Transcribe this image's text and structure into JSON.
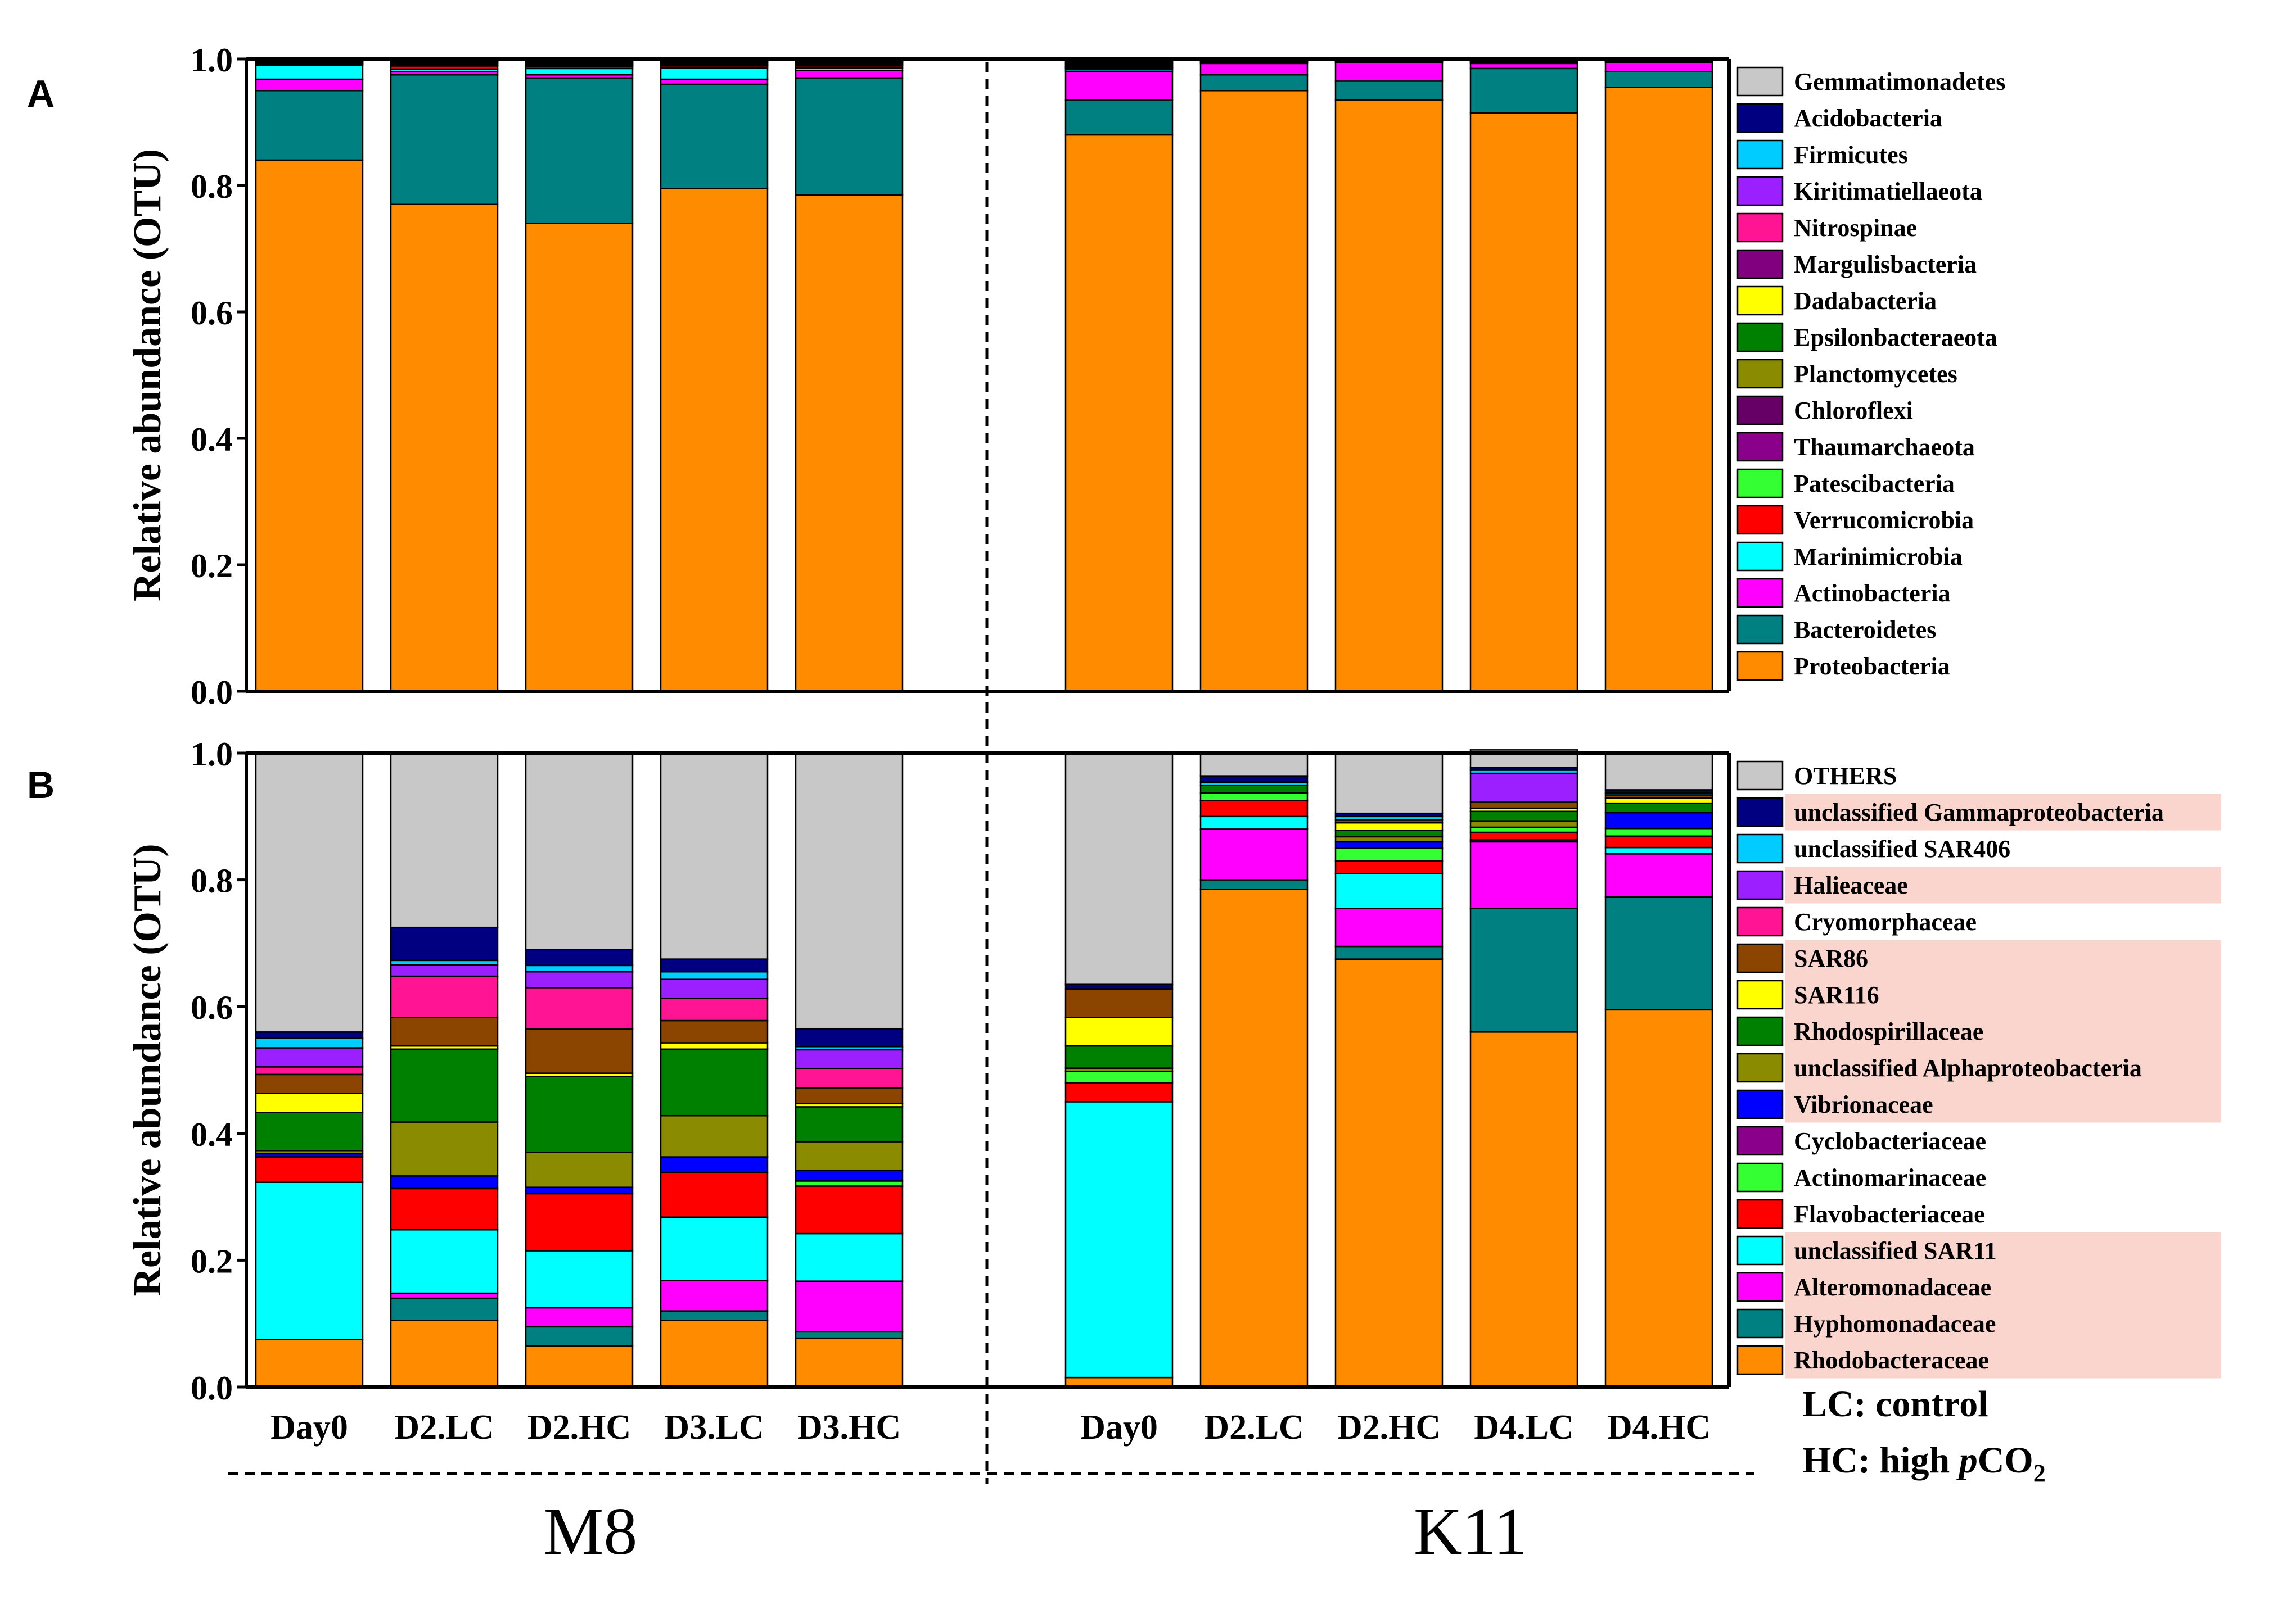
{
  "panel_labels": [
    "A",
    "B"
  ],
  "group_labels": [
    "M8",
    "K11"
  ],
  "note_lc": "LC: control",
  "note_hc_prefix": "HC: high ",
  "note_hc_p": "p",
  "note_hc_co": "CO",
  "note_hc_sub": "2",
  "chart_data": [
    {
      "type": "bar",
      "stacked": true,
      "panel": "A",
      "title": "",
      "ylabel": "Relative abundance (OTU)",
      "ylim": [
        0,
        1
      ],
      "yticks": [
        "0.0",
        "0.2",
        "0.4",
        "0.6",
        "0.8",
        "1.0"
      ],
      "categories": [
        "Day0",
        "D2.LC",
        "D2.HC",
        "D3.LC",
        "D3.HC",
        "Day0",
        "D2.LC",
        "D2.HC",
        "D4.LC",
        "D4.HC"
      ],
      "groups": [
        {
          "name": "M8",
          "categories": [
            "Day0",
            "D2.LC",
            "D2.HC",
            "D3.LC",
            "D3.HC"
          ]
        },
        {
          "name": "K11",
          "categories": [
            "Day0",
            "D2.LC",
            "D2.HC",
            "D4.LC",
            "D4.HC"
          ]
        }
      ],
      "series": [
        {
          "name": "Proteobacteria",
          "color": "#FF8C00",
          "values": [
            0.84,
            0.77,
            0.74,
            0.795,
            0.785,
            0.88,
            0.95,
            0.935,
            0.915,
            0.955
          ]
        },
        {
          "name": "Bacteroidetes",
          "color": "#008080",
          "values": [
            0.11,
            0.205,
            0.23,
            0.165,
            0.185,
            0.055,
            0.025,
            0.03,
            0.07,
            0.025
          ]
        },
        {
          "name": "Actinobacteria",
          "color": "#FF00FF",
          "values": [
            0.018,
            0.005,
            0.005,
            0.008,
            0.012,
            0.045,
            0.018,
            0.03,
            0.008,
            0.015
          ]
        },
        {
          "name": "Marinimicrobia",
          "color": "#00FFFF",
          "values": [
            0.022,
            0.004,
            0.01,
            0.018,
            0.004,
            0.003,
            0.002,
            0.001,
            0.002,
            0.001
          ]
        },
        {
          "name": "Verrucomicrobia",
          "color": "#FF0000",
          "values": [
            0.002,
            0.005,
            0.003,
            0.003,
            0.003,
            0.002,
            0.001,
            0.001,
            0.001,
            0.001
          ]
        },
        {
          "name": "Patescibacteria",
          "color": "#33FF33",
          "values": [
            0.001,
            0.001,
            0.001,
            0.001,
            0.001,
            0.001,
            0.001,
            0.0,
            0.001,
            0.0
          ]
        },
        {
          "name": "Thaumarchaeota",
          "color": "#8B008B",
          "values": [
            0.001,
            0.001,
            0.001,
            0.001,
            0.001,
            0.001,
            0.0,
            0.0,
            0.0,
            0.0
          ]
        },
        {
          "name": "Chloroflexi",
          "color": "#660066",
          "values": [
            0.001,
            0.0,
            0.001,
            0.001,
            0.001,
            0.001,
            0.0,
            0.0,
            0.0,
            0.0
          ]
        },
        {
          "name": "Planctomycetes",
          "color": "#8B8B00",
          "values": [
            0.001,
            0.002,
            0.001,
            0.002,
            0.001,
            0.001,
            0.001,
            0.001,
            0.001,
            0.001
          ]
        },
        {
          "name": "Epsilonbacteraeota",
          "color": "#008000",
          "values": [
            0.001,
            0.001,
            0.001,
            0.001,
            0.001,
            0.002,
            0.0,
            0.0,
            0.0,
            0.0
          ]
        },
        {
          "name": "Dadabacteria",
          "color": "#FFFF00",
          "values": [
            0.0,
            0.0,
            0.001,
            0.001,
            0.001,
            0.0,
            0.0,
            0.0,
            0.0,
            0.0
          ]
        },
        {
          "name": "Margulisbacteria",
          "color": "#800080",
          "values": [
            0.0,
            0.001,
            0.0,
            0.0,
            0.0,
            0.0,
            0.0,
            0.0,
            0.0,
            0.0
          ]
        },
        {
          "name": "Nitrospinae",
          "color": "#FF1493",
          "values": [
            0.0,
            0.001,
            0.001,
            0.001,
            0.001,
            0.002,
            0.001,
            0.001,
            0.001,
            0.001
          ]
        },
        {
          "name": "Kiritimatiellaeota",
          "color": "#9B1FFF",
          "values": [
            0.0,
            0.0,
            0.0,
            0.0,
            0.0,
            0.0,
            0.0,
            0.0,
            0.0,
            0.0
          ]
        },
        {
          "name": "Firmicutes",
          "color": "#00CCFF",
          "values": [
            0.001,
            0.001,
            0.0,
            0.001,
            0.001,
            0.001,
            0.0,
            0.0,
            0.0,
            0.0
          ]
        },
        {
          "name": "Acidobacteria",
          "color": "#000080",
          "values": [
            0.001,
            0.001,
            0.001,
            0.001,
            0.001,
            0.002,
            0.0,
            0.0,
            0.0,
            0.0
          ]
        },
        {
          "name": "Gemmatimonadetes",
          "color": "#C8C8C8",
          "values": [
            0.0,
            0.002,
            0.003,
            0.001,
            0.002,
            0.004,
            0.001,
            0.001,
            0.001,
            0.001
          ]
        }
      ],
      "legend": [
        "Gemmatimonadetes",
        "Acidobacteria",
        "Firmicutes",
        "Kiritimatiellaeota",
        "Nitrospinae",
        "Margulisbacteria",
        "Dadabacteria",
        "Epsilonbacteraeota",
        "Planctomycetes",
        "Chloroflexi",
        "Thaumarchaeota",
        "Patescibacteria",
        "Verrucomicrobia",
        "Marinimicrobia",
        "Actinobacteria",
        "Bacteroidetes",
        "Proteobacteria"
      ],
      "legend_position": "right"
    },
    {
      "type": "bar",
      "stacked": true,
      "panel": "B",
      "title": "",
      "ylabel": "Relative abundance (OTU)",
      "ylim": [
        0,
        1
      ],
      "yticks": [
        "0.0",
        "0.2",
        "0.4",
        "0.6",
        "0.8",
        "1.0"
      ],
      "categories": [
        "Day0",
        "D2.LC",
        "D2.HC",
        "D3.LC",
        "D3.HC",
        "Day0",
        "D2.LC",
        "D2.HC",
        "D4.LC",
        "D4.HC"
      ],
      "groups": [
        {
          "name": "M8",
          "categories": [
            "Day0",
            "D2.LC",
            "D2.HC",
            "D3.LC",
            "D3.HC"
          ]
        },
        {
          "name": "K11",
          "categories": [
            "Day0",
            "D2.LC",
            "D2.HC",
            "D4.LC",
            "D4.HC"
          ]
        }
      ],
      "series": [
        {
          "name": "Rhodobacteraceae",
          "color": "#FF8C00",
          "values": [
            0.075,
            0.105,
            0.065,
            0.105,
            0.077,
            0.015,
            0.785,
            0.675,
            0.56,
            0.595
          ]
        },
        {
          "name": "Hyphomonadaceae",
          "color": "#008080",
          "values": [
            0.0,
            0.035,
            0.03,
            0.015,
            0.01,
            0.0,
            0.015,
            0.02,
            0.195,
            0.178
          ]
        },
        {
          "name": "Alteromonadaceae",
          "color": "#FF00FF",
          "values": [
            0.0,
            0.008,
            0.03,
            0.048,
            0.08,
            0.0,
            0.08,
            0.06,
            0.105,
            0.068
          ]
        },
        {
          "name": "unclassified SAR11",
          "color": "#00FFFF",
          "values": [
            0.248,
            0.1,
            0.09,
            0.1,
            0.075,
            0.435,
            0.02,
            0.055,
            0.003,
            0.01
          ]
        },
        {
          "name": "Flavobacteriaceae",
          "color": "#FF0000",
          "values": [
            0.04,
            0.065,
            0.09,
            0.07,
            0.075,
            0.03,
            0.025,
            0.02,
            0.012,
            0.018
          ]
        },
        {
          "name": "Actinomarinaceae",
          "color": "#33FF33",
          "values": [
            0.0,
            0.0,
            0.0,
            0.0,
            0.008,
            0.018,
            0.012,
            0.02,
            0.008,
            0.012
          ]
        },
        {
          "name": "Cyclobacteriaceae",
          "color": "#8B008B",
          "values": [
            0.0,
            0.0,
            0.0,
            0.0,
            0.0,
            0.0,
            0.0,
            0.0,
            0.0,
            0.0
          ]
        },
        {
          "name": "Vibrionaceae",
          "color": "#0000FF",
          "values": [
            0.005,
            0.02,
            0.01,
            0.025,
            0.017,
            0.0,
            0.0,
            0.01,
            0.0,
            0.025
          ]
        },
        {
          "name": "unclassified Alphaproteobacteria",
          "color": "#8B8B00",
          "values": [
            0.005,
            0.085,
            0.055,
            0.065,
            0.045,
            0.005,
            0.0,
            0.008,
            0.01,
            0.0
          ]
        },
        {
          "name": "Rhodospirillaceae",
          "color": "#008000",
          "values": [
            0.06,
            0.115,
            0.12,
            0.105,
            0.055,
            0.035,
            0.012,
            0.01,
            0.015,
            0.015
          ]
        },
        {
          "name": "SAR116",
          "color": "#FFFF00",
          "values": [
            0.03,
            0.005,
            0.005,
            0.01,
            0.005,
            0.045,
            0.0,
            0.012,
            0.005,
            0.008
          ]
        },
        {
          "name": "SAR86",
          "color": "#8B4500",
          "values": [
            0.03,
            0.045,
            0.07,
            0.035,
            0.025,
            0.045,
            0.0,
            0.005,
            0.01,
            0.005
          ]
        },
        {
          "name": "Cryomorphaceae",
          "color": "#FF1493",
          "values": [
            0.012,
            0.065,
            0.065,
            0.035,
            0.03,
            0.0,
            0.0,
            0.0,
            0.0,
            0.0
          ]
        },
        {
          "name": "Halieaceae",
          "color": "#9B1FFF",
          "values": [
            0.03,
            0.018,
            0.025,
            0.03,
            0.03,
            0.0,
            0.0,
            0.0,
            0.045,
            0.0
          ]
        },
        {
          "name": "unclassified SAR406",
          "color": "#00CCFF",
          "values": [
            0.015,
            0.007,
            0.01,
            0.012,
            0.005,
            0.0,
            0.005,
            0.005,
            0.005,
            0.003
          ]
        },
        {
          "name": "unclassified Gammaproteobacteria",
          "color": "#000080",
          "values": [
            0.01,
            0.052,
            0.025,
            0.02,
            0.028,
            0.007,
            0.01,
            0.005,
            0.004,
            0.005
          ]
        },
        {
          "name": "OTHERS",
          "color": "#C8C8C8",
          "values": [
            0.44,
            0.275,
            0.31,
            0.325,
            0.435,
            0.365,
            0.036,
            0.095,
            0.028,
            0.058
          ]
        }
      ],
      "legend": [
        "OTHERS",
        "unclassified Gammaproteobacteria",
        "unclassified SAR406",
        "Halieaceae",
        "Cryomorphaceae",
        "SAR86",
        "SAR116",
        "Rhodospirillaceae",
        "unclassified Alphaproteobacteria",
        "Vibrionaceae",
        "Cyclobacteriaceae",
        "Actinomarinaceae",
        "Flavobacteriaceae",
        "unclassified SAR11",
        "Alteromonadaceae",
        "Hyphomonadaceae",
        "Rhodobacteraceae"
      ],
      "legend_highlighted": [
        "unclassified Gammaproteobacteria",
        "Halieaceae",
        "SAR86",
        "SAR116",
        "Rhodospirillaceae",
        "unclassified Alphaproteobacteria",
        "Vibrionaceae",
        "unclassified SAR11",
        "Alteromonadaceae",
        "Hyphomonadaceae",
        "Rhodobacteraceae"
      ],
      "highlight_color": "#F9D5CE",
      "legend_position": "right"
    }
  ]
}
